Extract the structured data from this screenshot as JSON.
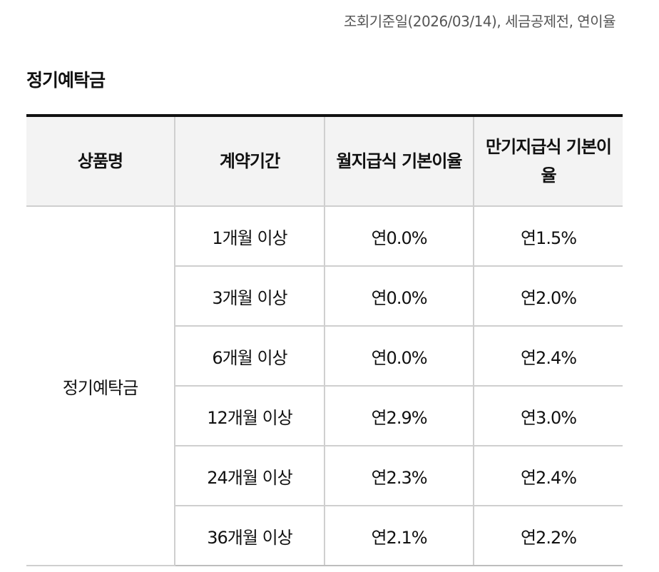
{
  "notice": "조회기준일(2026/03/14), 세금공제전, 연이율",
  "section_title": "정기예탁금",
  "table": {
    "headers": [
      "상품명",
      "계약기간",
      "월지급식 기본이율",
      "만기지급식 기본이율"
    ],
    "product_name": "정기예탁금",
    "rows": [
      {
        "term": "1개월 이상",
        "monthly": "연0.0%",
        "maturity": "연1.5%"
      },
      {
        "term": "3개월 이상",
        "monthly": "연0.0%",
        "maturity": "연2.0%"
      },
      {
        "term": "6개월 이상",
        "monthly": "연0.0%",
        "maturity": "연2.4%"
      },
      {
        "term": "12개월 이상",
        "monthly": "연2.9%",
        "maturity": "연3.0%"
      },
      {
        "term": "24개월 이상",
        "monthly": "연2.3%",
        "maturity": "연2.4%"
      },
      {
        "term": "36개월 이상",
        "monthly": "연2.1%",
        "maturity": "연2.2%"
      }
    ]
  }
}
